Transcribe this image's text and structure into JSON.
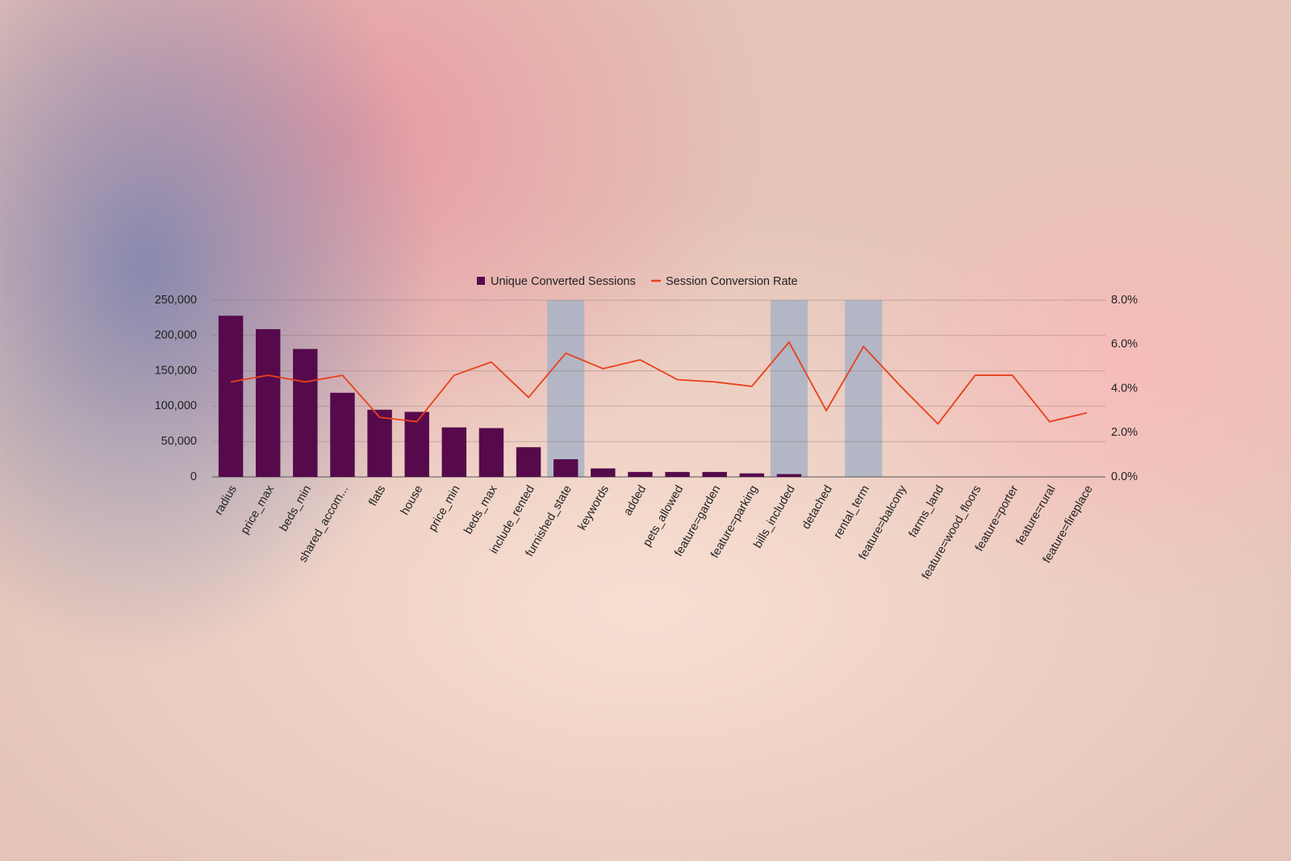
{
  "chart_data": {
    "type": "bar-line",
    "categories": [
      "radius",
      "price_max",
      "beds_min",
      "shared_accom...",
      "flats",
      "house",
      "price_min",
      "beds_max",
      "include_rented",
      "furnished_state",
      "keywords",
      "added",
      "pets_allowed",
      "feature=garden",
      "feature=parking",
      "bills_included",
      "detached",
      "rental_term",
      "feature=balcony",
      "farms_land",
      "feature=wood_floors",
      "feature=porter",
      "feature=rural",
      "feature=fireplace"
    ],
    "series": [
      {
        "name": "Unique Converted Sessions",
        "type": "bar",
        "color": "#560a4c",
        "values": [
          228000,
          209000,
          181000,
          119000,
          95000,
          92000,
          70000,
          69000,
          42000,
          25000,
          12000,
          7000,
          7000,
          7000,
          5000,
          4000,
          0,
          0,
          0,
          0,
          0,
          0,
          0,
          0
        ]
      },
      {
        "name": "Session Conversion Rate",
        "type": "line",
        "axis": "y2",
        "color": "#e8401c",
        "values": [
          4.3,
          4.6,
          4.3,
          4.6,
          2.7,
          2.5,
          4.6,
          5.2,
          3.6,
          5.6,
          4.9,
          5.3,
          4.4,
          4.3,
          4.1,
          6.1,
          3.0,
          5.9,
          4.1,
          2.4,
          4.6,
          4.6,
          2.5,
          2.9
        ]
      }
    ],
    "highlighted": [
      "furnished_state",
      "bills_included",
      "rental_term"
    ],
    "highlight_color": "#a9b3c6",
    "ylim": [
      0,
      250000
    ],
    "yticks": [
      0,
      {
        "value": 50000,
        "label": "50,000"
      },
      {
        "value": 100000,
        "label": "100,000"
      },
      {
        "value": 150000,
        "label": "150,000"
      },
      {
        "value": 200000,
        "label": "200,000"
      },
      {
        "value": 250000,
        "label": "250,000"
      }
    ],
    "y2lim": [
      0,
      8
    ],
    "y2ticks": [
      {
        "value": 0,
        "label": "0.0%"
      },
      {
        "value": 2,
        "label": "2.0%"
      },
      {
        "value": 4,
        "label": "4.0%"
      },
      {
        "value": 6,
        "label": "6.0%"
      },
      {
        "value": 8,
        "label": "8.0%"
      }
    ],
    "grid": true,
    "legend": "top"
  }
}
